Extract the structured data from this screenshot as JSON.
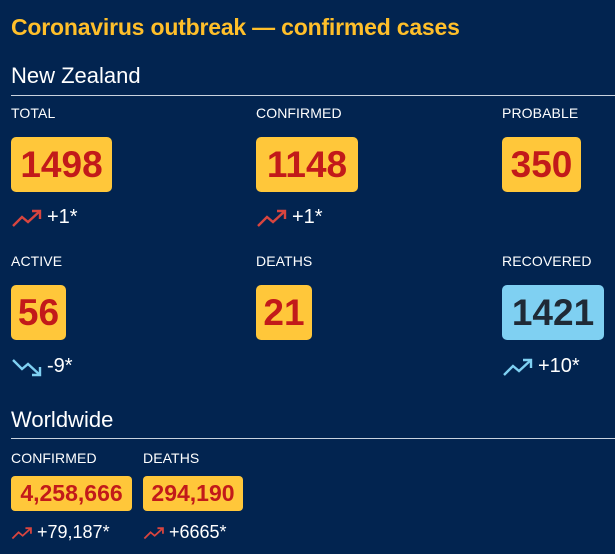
{
  "title": "Coronavirus outbreak — confirmed cases",
  "nz": {
    "heading": "New Zealand",
    "total": {
      "label": "TOTAL",
      "value": "1498",
      "change": "+1*",
      "trend": "up"
    },
    "confirmed": {
      "label": "CONFIRMED",
      "value": "1148",
      "change": "+1*",
      "trend": "up"
    },
    "probable": {
      "label": "PROBABLE",
      "value": "350"
    },
    "active": {
      "label": "ACTIVE",
      "value": "56",
      "change": "-9*",
      "trend": "down"
    },
    "deaths": {
      "label": "DEATHS",
      "value": "21"
    },
    "recovered": {
      "label": "RECOVERED",
      "value": "1421",
      "change": "+10*",
      "trend": "up"
    }
  },
  "world": {
    "heading": "Worldwide",
    "confirmed": {
      "label": "CONFIRMED",
      "value": "4,258,666",
      "change": "+79,187*",
      "trend": "up"
    },
    "deaths": {
      "label": "DEATHS",
      "value": "294,190",
      "change": "+6665*",
      "trend": "up"
    }
  },
  "colors": {
    "background": "#022450",
    "title": "#ffbf2a",
    "value_box": "#ffc73a",
    "value_text": "#c21a1a",
    "recovered_box": "#7fd0f2",
    "trend_up_red": "#d8453f",
    "trend_blue": "#7fd0f2"
  },
  "icons": {
    "trend_up": "trend-up-icon",
    "trend_down": "trend-down-icon"
  }
}
